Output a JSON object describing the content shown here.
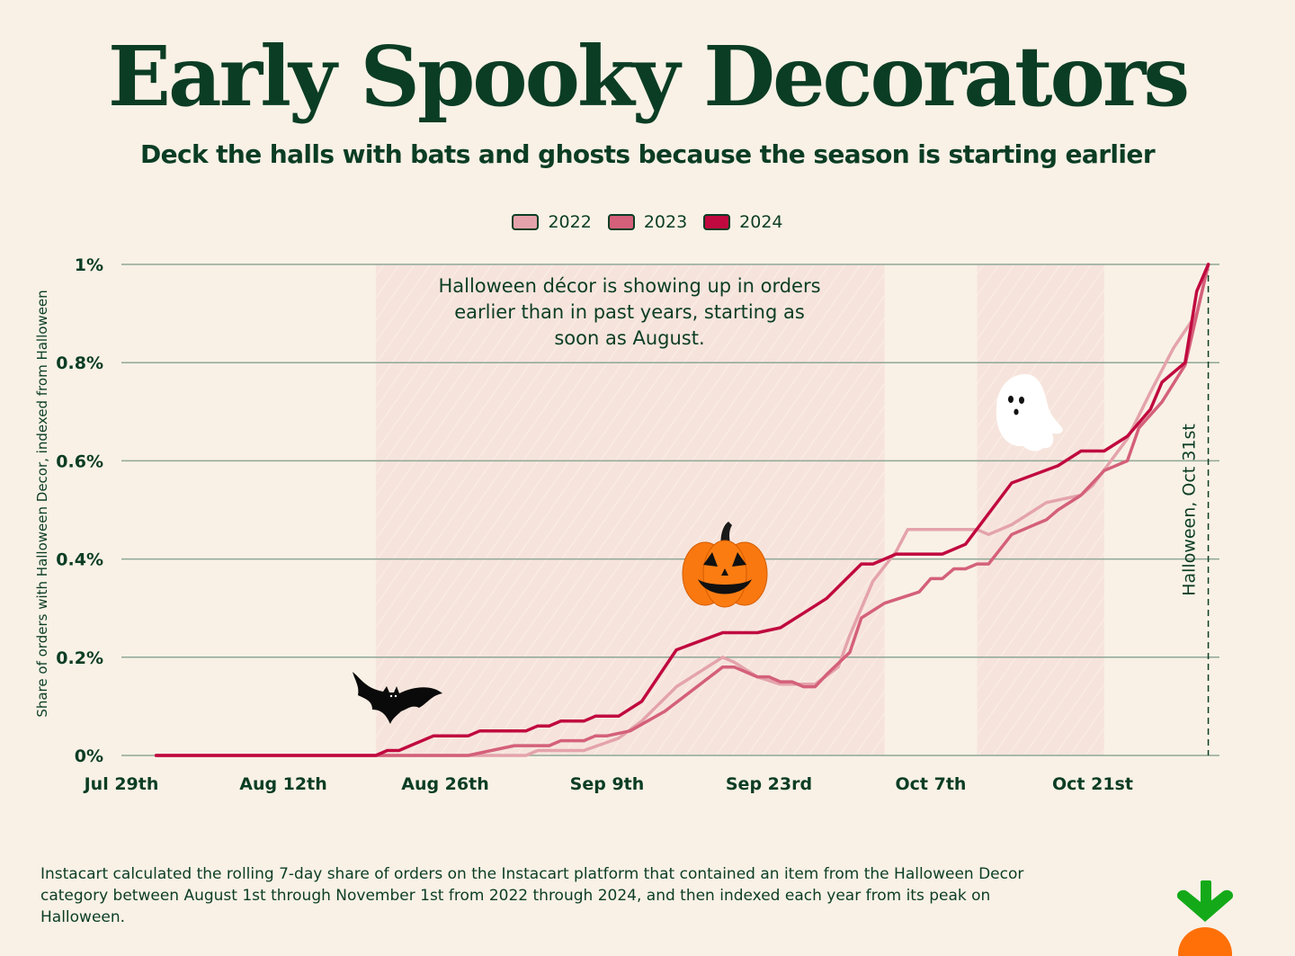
{
  "header": {
    "title": "Early Spooky Decorators",
    "subtitle": "Deck the halls with bats and ghosts because the season is starting earlier"
  },
  "footer": {
    "note": "Instacart calculated the rolling 7-day share of orders on the Instacart platform that contained an item from the Halloween Decor category between August 1st through November 1st from 2022 through 2024, and then indexed each year from its peak on Halloween."
  },
  "colors": {
    "background": "#f9f1e6",
    "text": "#0b3d24",
    "highlight": "#f6e4dc",
    "logo_leaf": "#14a919",
    "logo_carrot": "#ff7009"
  },
  "icons": [
    "bat-icon",
    "pumpkin-icon",
    "ghost-icon",
    "instacart-carrot-logo"
  ],
  "chart_data": {
    "type": "line",
    "title": "Early Spooky Decorators",
    "ylabel": "Share of orders with Halloween Decor, indexed from Halloween",
    "xlabel": "",
    "x_ticks": [
      "Jul 29th",
      "Aug 12th",
      "Aug 26th",
      "Sep 9th",
      "Sep 23rd",
      "Oct 7th",
      "Oct 21st"
    ],
    "y_ticks": [
      {
        "value": 0,
        "label": "0%"
      },
      {
        "value": 0.2,
        "label": "0.2%"
      },
      {
        "value": 0.4,
        "label": "0.4%"
      },
      {
        "value": 0.6,
        "label": "0.6%"
      },
      {
        "value": 0.8,
        "label": "0.8%"
      },
      {
        "value": 1.0,
        "label": "1%"
      }
    ],
    "xlim": [
      "Jul 29",
      "Oct 31"
    ],
    "ylim": [
      0,
      1
    ],
    "grid": "horizontal",
    "legend_position": "top-center",
    "annotation": "Halloween décor is showing up in orders earlier than in past years, starting as soon as August.",
    "reference_line": {
      "date": "Oct 31",
      "label": "Halloween, Oct 31st"
    },
    "highlight_ranges": [
      [
        "Aug 20",
        "Oct 3"
      ],
      [
        "Oct 11",
        "Oct 22"
      ]
    ],
    "series": [
      {
        "name": "2022",
        "color": "#e4a3ab",
        "points": [
          [
            "Aug 1",
            0
          ],
          [
            "Sep 2",
            0
          ],
          [
            "Sep 3",
            0.01
          ],
          [
            "Sep 7",
            0.01
          ],
          [
            "Sep 10",
            0.035
          ],
          [
            "Sep 12",
            0.07
          ],
          [
            "Sep 15",
            0.14
          ],
          [
            "Sep 19",
            0.2
          ],
          [
            "Sep 20",
            0.19
          ],
          [
            "Sep 22",
            0.16
          ],
          [
            "Sep 24",
            0.145
          ],
          [
            "Sep 27",
            0.145
          ],
          [
            "Sep 29",
            0.18
          ],
          [
            "Sep 30",
            0.245
          ],
          [
            "Oct 2",
            0.355
          ],
          [
            "Oct 4",
            0.415
          ],
          [
            "Oct 5",
            0.46
          ],
          [
            "Oct 11",
            0.46
          ],
          [
            "Oct 12",
            0.45
          ],
          [
            "Oct 14",
            0.47
          ],
          [
            "Oct 17",
            0.515
          ],
          [
            "Oct 18",
            0.52
          ],
          [
            "Oct 20",
            0.53
          ],
          [
            "Oct 21",
            0.55
          ],
          [
            "Oct 24",
            0.645
          ],
          [
            "Oct 26",
            0.74
          ],
          [
            "Oct 28",
            0.83
          ],
          [
            "Oct 30",
            0.9
          ],
          [
            "Oct 31",
            1.0
          ]
        ]
      },
      {
        "name": "2023",
        "color": "#d4607a",
        "points": [
          [
            "Aug 1",
            0
          ],
          [
            "Aug 28",
            0
          ],
          [
            "Aug 30",
            0.01
          ],
          [
            "Sep 1",
            0.02
          ],
          [
            "Sep 4",
            0.02
          ],
          [
            "Sep 5",
            0.03
          ],
          [
            "Sep 7",
            0.03
          ],
          [
            "Sep 8",
            0.04
          ],
          [
            "Sep 9",
            0.04
          ],
          [
            "Sep 11",
            0.05
          ],
          [
            "Sep 14",
            0.09
          ],
          [
            "Sep 19",
            0.18
          ],
          [
            "Sep 20",
            0.18
          ],
          [
            "Sep 22",
            0.16
          ],
          [
            "Sep 23",
            0.16
          ],
          [
            "Sep 24",
            0.15
          ],
          [
            "Sep 25",
            0.15
          ],
          [
            "Sep 26",
            0.14
          ],
          [
            "Sep 27",
            0.14
          ],
          [
            "Sep 28",
            0.165
          ],
          [
            "Sep 30",
            0.21
          ],
          [
            "Oct 1",
            0.28
          ],
          [
            "Oct 3",
            0.31
          ],
          [
            "Oct 6",
            0.333
          ],
          [
            "Oct 7",
            0.36
          ],
          [
            "Oct 8",
            0.36
          ],
          [
            "Oct 9",
            0.38
          ],
          [
            "Oct 10",
            0.38
          ],
          [
            "Oct 11",
            0.39
          ],
          [
            "Oct 12",
            0.39
          ],
          [
            "Oct 14",
            0.45
          ],
          [
            "Oct 17",
            0.48
          ],
          [
            "Oct 18",
            0.5
          ],
          [
            "Oct 20",
            0.53
          ],
          [
            "Oct 22",
            0.58
          ],
          [
            "Oct 24",
            0.6
          ],
          [
            "Oct 25",
            0.667
          ],
          [
            "Oct 27",
            0.72
          ],
          [
            "Oct 29",
            0.795
          ],
          [
            "Oct 31",
            1.0
          ]
        ]
      },
      {
        "name": "2024",
        "color": "#c0093f",
        "points": [
          [
            "Aug 1",
            0
          ],
          [
            "Aug 20",
            0
          ],
          [
            "Aug 21",
            0.01
          ],
          [
            "Aug 22",
            0.01
          ],
          [
            "Aug 25",
            0.04
          ],
          [
            "Aug 28",
            0.04
          ],
          [
            "Aug 29",
            0.05
          ],
          [
            "Sep 2",
            0.05
          ],
          [
            "Sep 3",
            0.06
          ],
          [
            "Sep 4",
            0.06
          ],
          [
            "Sep 5",
            0.07
          ],
          [
            "Sep 7",
            0.07
          ],
          [
            "Sep 8",
            0.08
          ],
          [
            "Sep 10",
            0.08
          ],
          [
            "Sep 12",
            0.11
          ],
          [
            "Sep 15",
            0.215
          ],
          [
            "Sep 19",
            0.25
          ],
          [
            "Sep 22",
            0.25
          ],
          [
            "Sep 24",
            0.26
          ],
          [
            "Sep 26",
            0.29
          ],
          [
            "Sep 28",
            0.32
          ],
          [
            "Oct 1",
            0.39
          ],
          [
            "Oct 2",
            0.39
          ],
          [
            "Oct 4",
            0.41
          ],
          [
            "Oct 8",
            0.41
          ],
          [
            "Oct 10",
            0.43
          ],
          [
            "Oct 14",
            0.555
          ],
          [
            "Oct 18",
            0.59
          ],
          [
            "Oct 20",
            0.62
          ],
          [
            "Oct 22",
            0.62
          ],
          [
            "Oct 24",
            0.65
          ],
          [
            "Oct 26",
            0.705
          ],
          [
            "Oct 27",
            0.76
          ],
          [
            "Oct 29",
            0.8
          ],
          [
            "Oct 30",
            0.945
          ],
          [
            "Oct 31",
            1.0
          ]
        ]
      }
    ]
  }
}
